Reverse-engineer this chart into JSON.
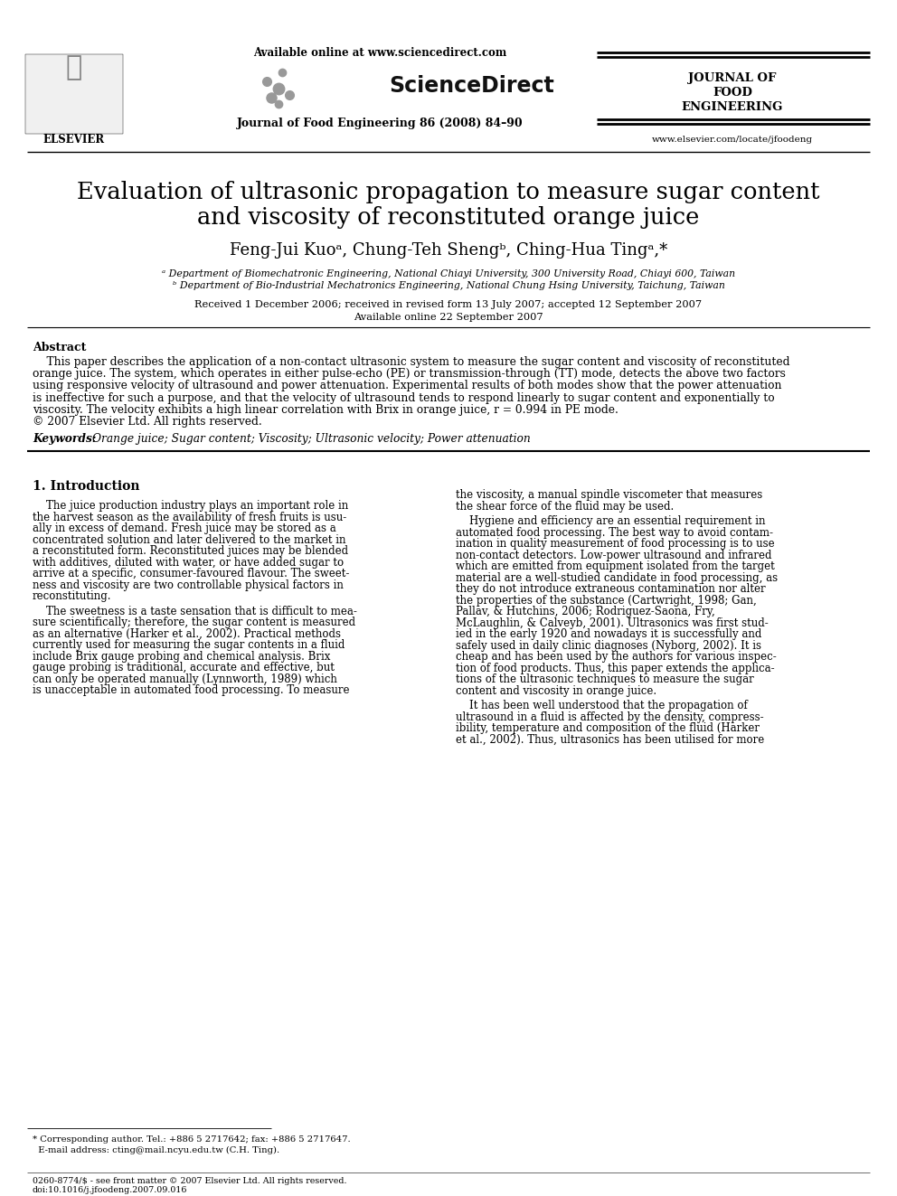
{
  "bg_color": "#ffffff",
  "title_line1": "Evaluation of ultrasonic propagation to measure sugar content",
  "title_line2": "and viscosity of reconstituted orange juice",
  "authors": "Feng-Jui Kuoᵃ, Chung-Teh Shengᵇ, Ching-Hua Tingᵃ,*",
  "affil_a": "ᵃ Department of Biomechatronic Engineering, National Chiayi University, 300 University Road, Chiayi 600, Taiwan",
  "affil_b": "ᵇ Department of Bio-Industrial Mechatronics Engineering, National Chung Hsing University, Taichung, Taiwan",
  "received": "Received 1 December 2006; received in revised form 13 July 2007; accepted 12 September 2007",
  "available": "Available online 22 September 2007",
  "header_available": "Available online at www.sciencedirect.com",
  "header_journal_line1": "Journal of Food Engineering 86 (2008) 84–90",
  "header_journal_name1": "JOURNAL OF",
  "header_journal_name2": "FOOD",
  "header_journal_name3": "ENGINEERING",
  "header_website": "www.elsevier.com/locate/jfoodeng",
  "elsevier_text": "ELSEVIER",
  "sciencedirect_text": "ScienceDirect",
  "abstract_title": "Abstract",
  "abstract_text": "    This paper describes the application of a non-contact ultrasonic system to measure the sugar content and viscosity of reconstituted\norange juice. The system, which operates in either pulse-echo (PE) or transmission-through (TT) mode, detects the above two factors\nusing responsive velocity of ultrasound and power attenuation. Experimental results of both modes show that the power attenuation\nis ineffective for such a purpose, and that the velocity of ultrasound tends to respond linearly to sugar content and exponentially to\nviscosity. The velocity exhibits a high linear correlation with Brix in orange juice, r = 0.994 in PE mode.\n© 2007 Elsevier Ltd. All rights reserved.",
  "keywords_label": "Keywords:",
  "keywords_text": "Orange juice; Sugar content; Viscosity; Ultrasonic velocity; Power attenuation",
  "section1_title": "1. Introduction",
  "intro_left_para1": "    The juice production industry plays an important role in\nthe harvest season as the availability of fresh fruits is usu-\nally in excess of demand. Fresh juice may be stored as a\nconcentrated solution and later delivered to the market in\na reconstituted form. Reconstituted juices may be blended\nwith additives, diluted with water, or have added sugar to\narrive at a specific, consumer-favoured flavour. The sweet-\nness and viscosity are two controllable physical factors in\nreconstituting.",
  "intro_left_para2": "    The sweetness is a taste sensation that is difficult to mea-\nsure scientifically; therefore, the sugar content is measured\nas an alternative (Harker et al., 2002). Practical methods\ncurrently used for measuring the sugar contents in a fluid\ninclude Brix gauge probing and chemical analysis. Brix\ngauge probing is traditional, accurate and effective, but\ncan only be operated manually (Lynnworth, 1989) which\nis unacceptable in automated food processing. To measure",
  "intro_right_para1": "the viscosity, a manual spindle viscometer that measures\nthe shear force of the fluid may be used.",
  "intro_right_para2": "    Hygiene and efficiency are an essential requirement in\nautomated food processing. The best way to avoid contam-\nination in quality measurement of food processing is to use\nnon-contact detectors. Low-power ultrasound and infrared\nwhich are emitted from equipment isolated from the target\nmaterial are a well-studied candidate in food processing, as\nthey do not introduce extraneous contamination nor alter\nthe properties of the substance (Cartwright, 1998; Gan,\nPallav, & Hutchins, 2006; Rodriguez-Saona, Fry,\nMcLaughlin, & Calveyb, 2001). Ultrasonics was first stud-\nied in the early 1920 and nowadays it is successfully and\nsafely used in daily clinic diagnoses (Nyborg, 2002). It is\ncheap and has been used by the authors for various inspec-\ntion of food products. Thus, this paper extends the applica-\ntions of the ultrasonic techniques to measure the sugar\ncontent and viscosity in orange juice.",
  "intro_right_para3": "    It has been well understood that the propagation of\nultrasound in a fluid is affected by the density, compress-\nibility, temperature and composition of the fluid (Harker\net al., 2002). Thus, ultrasonics has been utilised for more",
  "footer_line1": "0260-8774/$ - see front matter © 2007 Elsevier Ltd. All rights reserved.",
  "footer_line2": "doi:10.1016/j.jfoodeng.2007.09.016",
  "footnote_star": "* Corresponding author. Tel.: +886 5 2717642; fax: +886 5 2717647.",
  "footnote_email": "  E-mail address: cting@mail.ncyu.edu.tw (C.H. Ting)."
}
